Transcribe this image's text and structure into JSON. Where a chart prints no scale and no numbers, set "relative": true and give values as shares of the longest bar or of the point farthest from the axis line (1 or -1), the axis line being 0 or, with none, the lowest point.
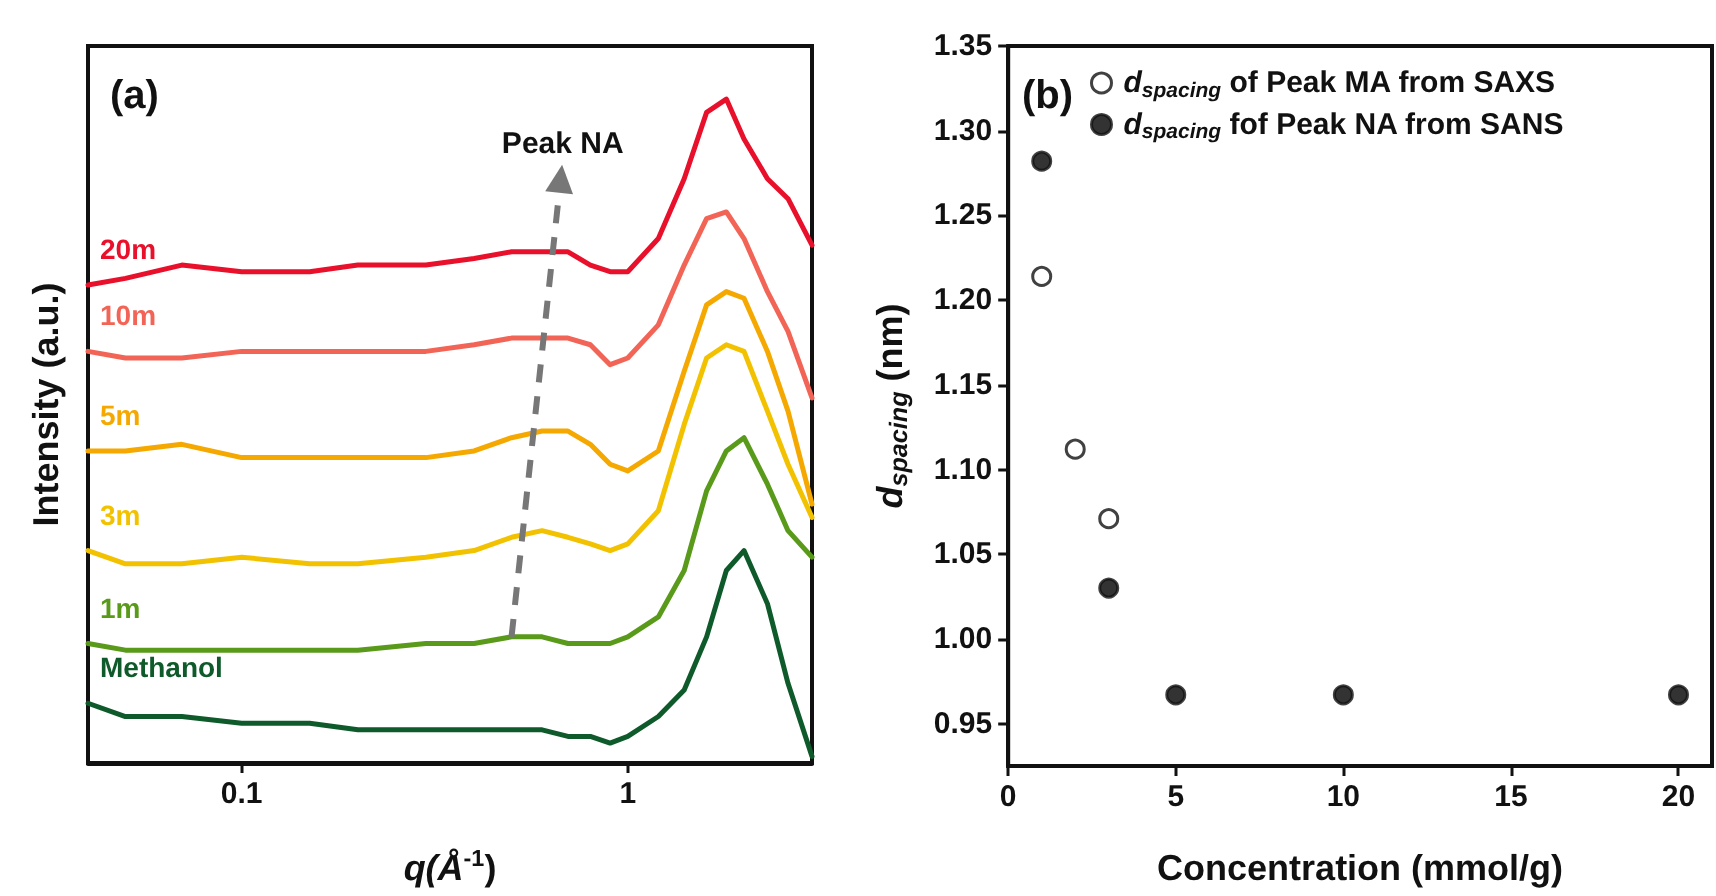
{
  "chart_data": [
    {
      "type": "line",
      "title": "(a)",
      "xlabel": "q(Å$^{-1}$)",
      "ylabel": "Intensity (a.u.)",
      "relative": true,
      "log": "x",
      "xlim": [
        0.04,
        3
      ],
      "xticks": [
        0.1,
        1
      ],
      "legend": false,
      "grid": false,
      "marker": "none",
      "line_style": "solid",
      "x": [
        0.04,
        0.05,
        0.07,
        0.1,
        0.15,
        0.2,
        0.3,
        0.4,
        0.5,
        0.6,
        0.7,
        0.8,
        0.9,
        1.0,
        1.2,
        1.4,
        1.6,
        1.8,
        2.0,
        2.3,
        2.6,
        3.0
      ],
      "annotations": [
        {
          "text": "Peak NA",
          "x": 0.67,
          "y": 0.88
        }
      ],
      "series": [
        {
          "name": "20m",
          "color": "#e8102a",
          "values": [
            0.72,
            0.73,
            0.75,
            0.74,
            0.74,
            0.75,
            0.75,
            0.76,
            0.77,
            0.77,
            0.77,
            0.75,
            0.74,
            0.74,
            0.79,
            0.88,
            0.98,
            1.0,
            0.94,
            0.88,
            0.85,
            0.78
          ]
        },
        {
          "name": "10m",
          "color": "#f26456",
          "values": [
            0.62,
            0.61,
            0.61,
            0.62,
            0.62,
            0.62,
            0.62,
            0.63,
            0.64,
            0.64,
            0.64,
            0.63,
            0.6,
            0.61,
            0.66,
            0.75,
            0.82,
            0.83,
            0.79,
            0.71,
            0.65,
            0.55
          ]
        },
        {
          "name": "5m",
          "color": "#f5a800",
          "values": [
            0.47,
            0.47,
            0.48,
            0.46,
            0.46,
            0.46,
            0.46,
            0.47,
            0.49,
            0.5,
            0.5,
            0.48,
            0.45,
            0.44,
            0.47,
            0.59,
            0.69,
            0.71,
            0.7,
            0.62,
            0.53,
            0.39
          ]
        },
        {
          "name": "3m",
          "color": "#f2c200",
          "values": [
            0.32,
            0.3,
            0.3,
            0.31,
            0.3,
            0.3,
            0.31,
            0.32,
            0.34,
            0.35,
            0.34,
            0.33,
            0.32,
            0.33,
            0.38,
            0.51,
            0.61,
            0.63,
            0.62,
            0.53,
            0.45,
            0.37
          ]
        },
        {
          "name": "1m",
          "color": "#5a9a1a",
          "values": [
            0.18,
            0.17,
            0.17,
            0.17,
            0.17,
            0.17,
            0.18,
            0.18,
            0.19,
            0.19,
            0.18,
            0.18,
            0.18,
            0.19,
            0.22,
            0.29,
            0.41,
            0.47,
            0.49,
            0.42,
            0.35,
            0.31
          ]
        },
        {
          "name": "Methanol",
          "color": "#0f5a2a",
          "values": [
            0.09,
            0.07,
            0.07,
            0.06,
            0.06,
            0.05,
            0.05,
            0.05,
            0.05,
            0.05,
            0.04,
            0.04,
            0.03,
            0.04,
            0.07,
            0.11,
            0.19,
            0.29,
            0.32,
            0.24,
            0.12,
            0.01
          ]
        }
      ]
    },
    {
      "type": "scatter",
      "title": "(b)",
      "xlabel": "Concentration (mmol/g)",
      "ylabel": "d$_{spacing}$ (nm)",
      "xlim": [
        0,
        21
      ],
      "xticks": [
        0,
        5,
        10,
        15,
        20
      ],
      "ylim": [
        0.925,
        1.35
      ],
      "yticks": [
        0.95,
        {
          "value": 1.0,
          "label": "1.00"
        },
        1.05,
        {
          "value": 1.1,
          "label": "1.10"
        },
        1.15,
        {
          "value": 1.2,
          "label": "1.20"
        },
        1.25,
        {
          "value": 1.3,
          "label": "1.30"
        },
        1.35
      ],
      "legend": "top left",
      "grid": false,
      "marker": "circle",
      "series": [
        {
          "name": "d$_{spacing}$ of Peak MA from SAXS",
          "color": "#ffffff",
          "x": [
            1,
            2,
            3
          ],
          "values": [
            1.214,
            1.112,
            1.071
          ]
        },
        {
          "name": "d$_{spacing}$ fof Peak NA from SANS",
          "color": "#000000",
          "x": [
            1,
            3,
            5,
            10,
            20
          ],
          "values": [
            1.282,
            1.03,
            0.967,
            0.967,
            0.967
          ]
        }
      ]
    }
  ]
}
